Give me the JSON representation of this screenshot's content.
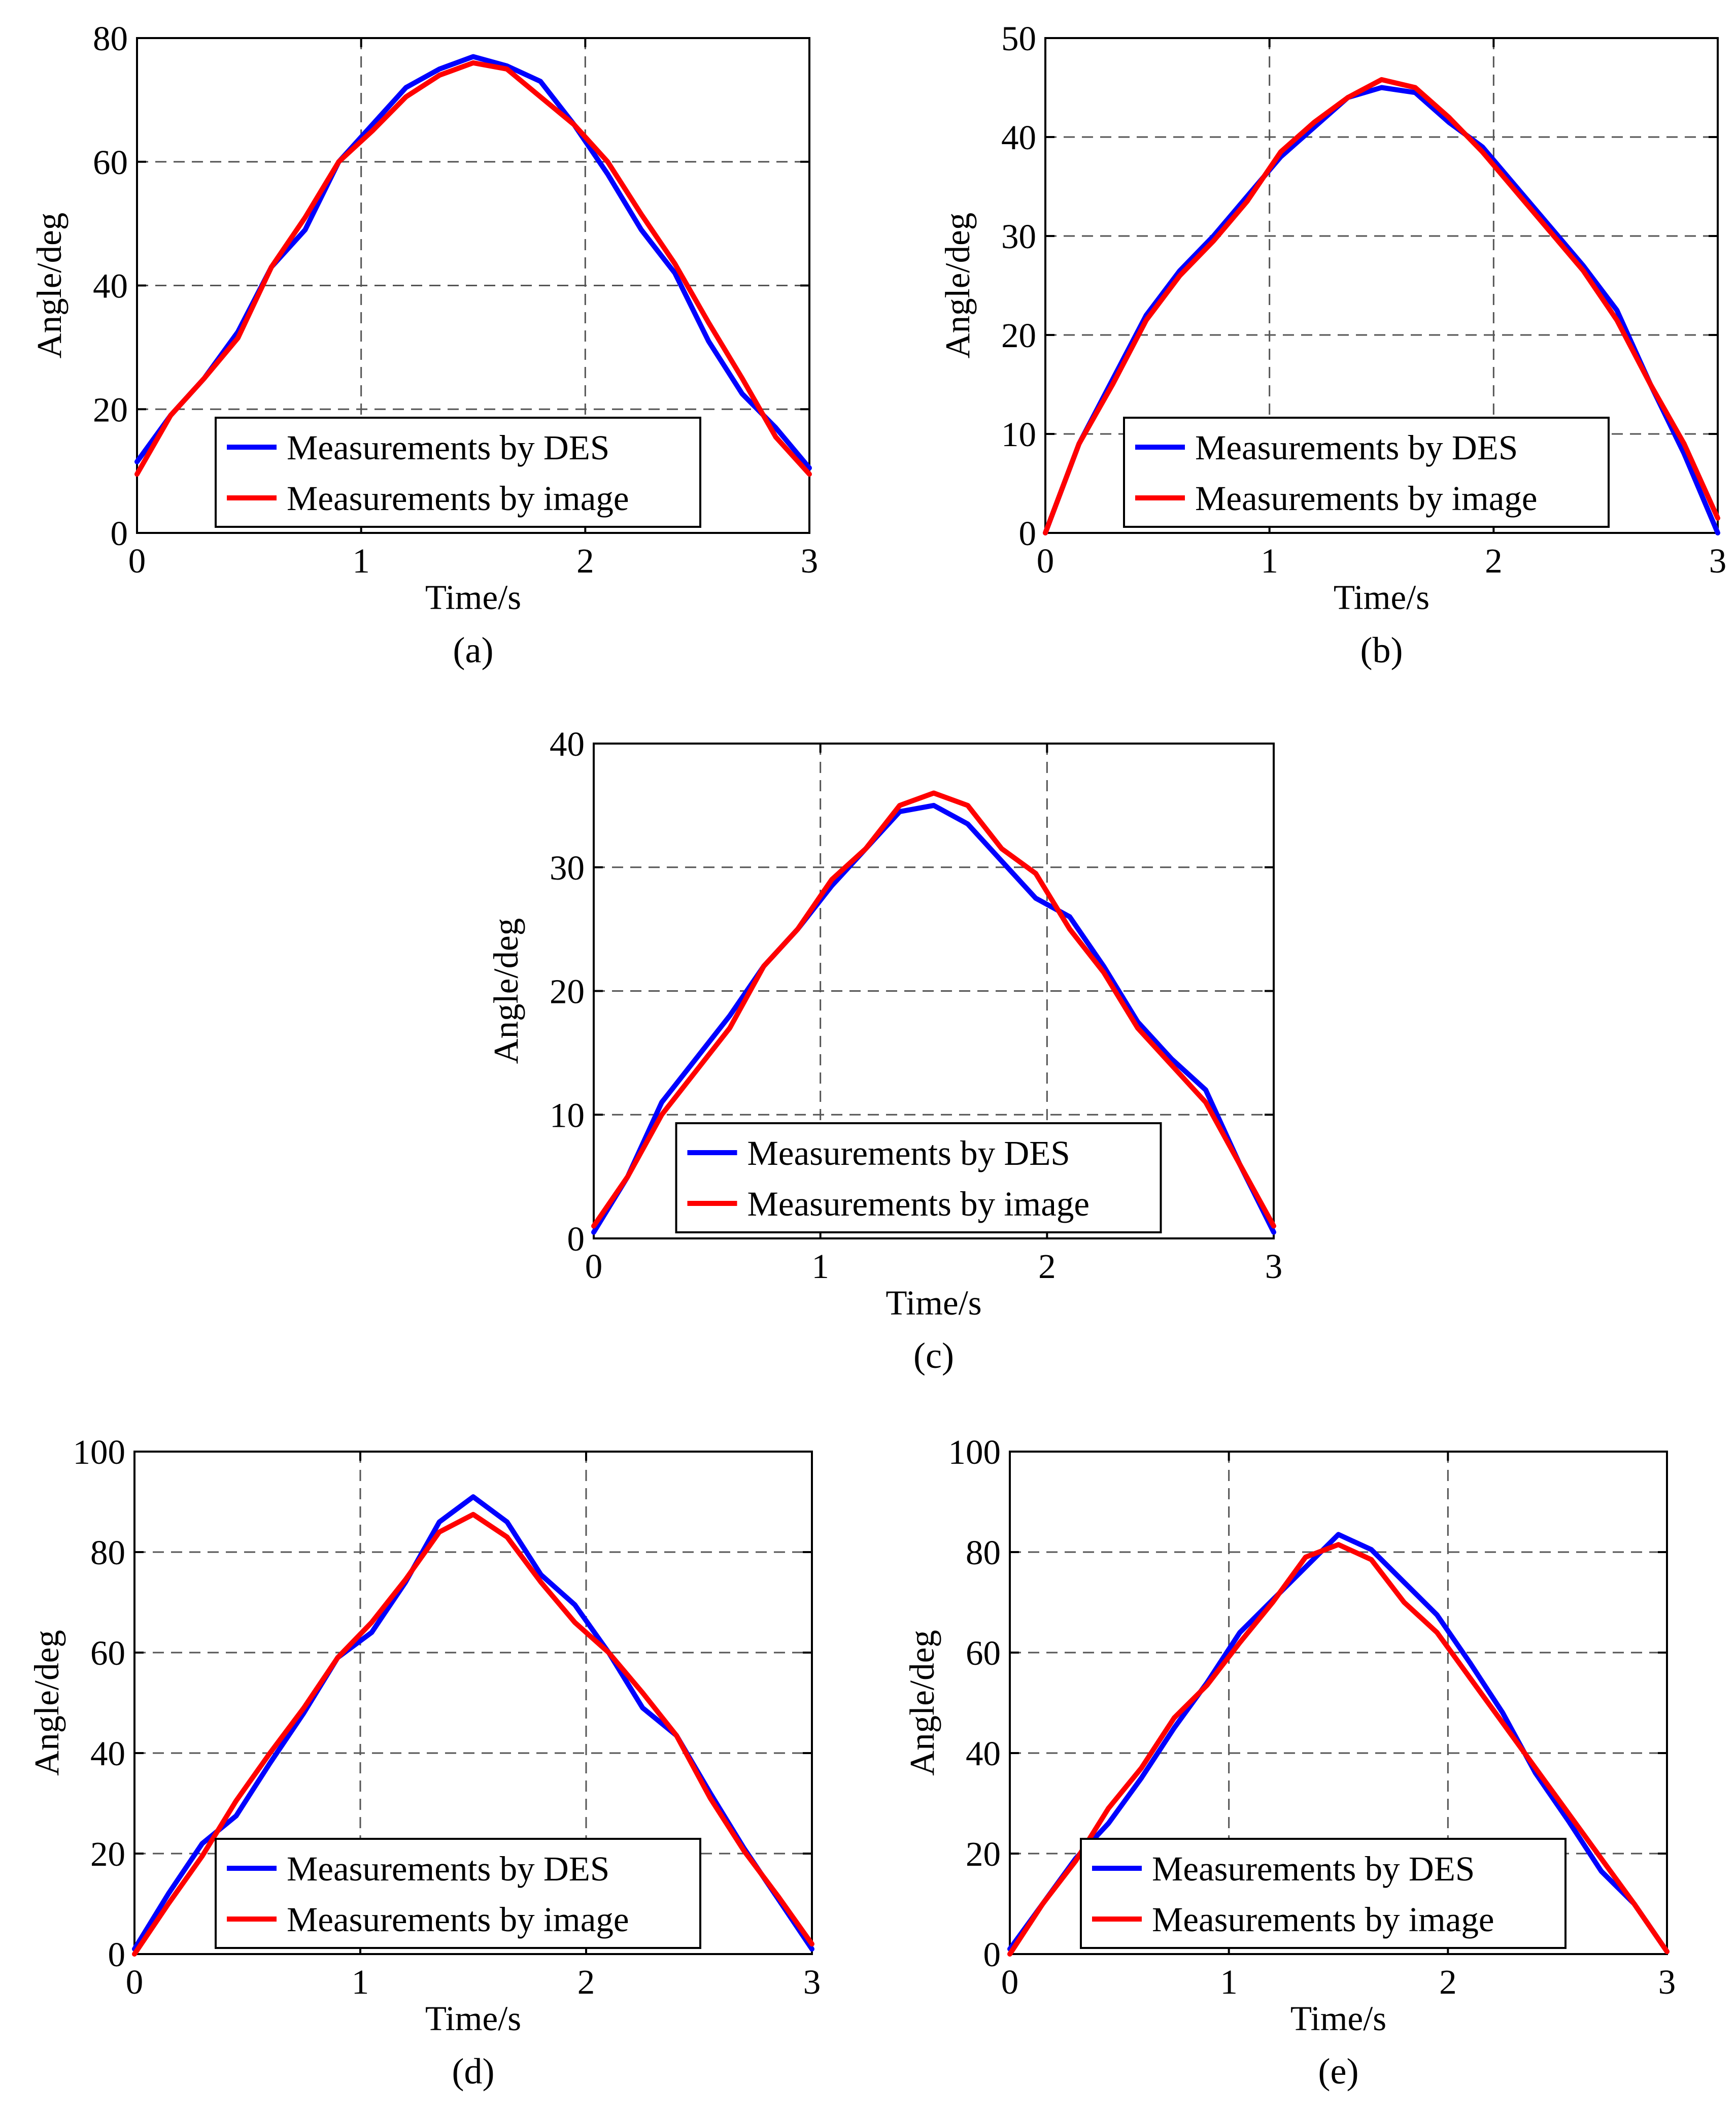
{
  "colors": {
    "des": "#0000ff",
    "image": "#ff0000"
  },
  "chart_data": [
    {
      "id": "a",
      "type": "line",
      "caption": "(a)",
      "xlabel": "Time/s",
      "ylabel": "Angle/deg",
      "xlim": [
        0,
        3
      ],
      "ylim": [
        0,
        80
      ],
      "xticks": [
        0,
        1,
        2,
        3
      ],
      "yticks": [
        0,
        20,
        40,
        60,
        80
      ],
      "grid": true,
      "legend_position": "bottom-center",
      "series": [
        {
          "name": "Measurements by DES",
          "color": "#0000ff",
          "x": [
            0,
            0.15,
            0.3,
            0.45,
            0.6,
            0.75,
            0.9,
            1.05,
            1.2,
            1.35,
            1.5,
            1.65,
            1.8,
            1.95,
            2.1,
            2.25,
            2.4,
            2.55,
            2.7,
            2.85,
            3
          ],
          "y": [
            11.5,
            19,
            25,
            32.5,
            43,
            49,
            60,
            66,
            72,
            75,
            77,
            75.5,
            73,
            66,
            58,
            49,
            42,
            31,
            22.5,
            17,
            10.5
          ]
        },
        {
          "name": "Measurements by image",
          "color": "#ff0000",
          "x": [
            0,
            0.15,
            0.3,
            0.45,
            0.6,
            0.75,
            0.9,
            1.05,
            1.2,
            1.35,
            1.5,
            1.65,
            1.8,
            1.95,
            2.1,
            2.25,
            2.4,
            2.55,
            2.7,
            2.85,
            3
          ],
          "y": [
            9.5,
            19,
            25,
            31.5,
            43,
            51,
            60,
            65,
            70.5,
            74,
            76,
            75,
            70.5,
            66,
            60,
            51.5,
            43.5,
            34,
            25,
            15.5,
            9.5
          ]
        }
      ]
    },
    {
      "id": "b",
      "type": "line",
      "caption": "(b)",
      "xlabel": "Time/s",
      "ylabel": "Angle/deg",
      "xlim": [
        0,
        3
      ],
      "ylim": [
        0,
        50
      ],
      "xticks": [
        0,
        1,
        2,
        3
      ],
      "yticks": [
        0,
        10,
        20,
        30,
        40,
        50
      ],
      "grid": true,
      "legend_position": "bottom-center",
      "series": [
        {
          "name": "Measurements by DES",
          "color": "#0000ff",
          "x": [
            0,
            0.15,
            0.3,
            0.45,
            0.6,
            0.75,
            0.9,
            1.05,
            1.2,
            1.35,
            1.5,
            1.65,
            1.8,
            1.95,
            2.1,
            2.25,
            2.4,
            2.55,
            2.7,
            2.85,
            3
          ],
          "y": [
            0,
            9,
            15.5,
            22,
            26.5,
            30,
            34,
            38,
            41,
            44,
            45,
            44.5,
            41.5,
            39,
            35,
            31,
            27,
            22.5,
            15,
            8,
            0
          ]
        },
        {
          "name": "Measurements by image",
          "color": "#ff0000",
          "x": [
            0,
            0.15,
            0.3,
            0.45,
            0.6,
            0.75,
            0.9,
            1.05,
            1.2,
            1.35,
            1.5,
            1.65,
            1.8,
            1.95,
            2.1,
            2.25,
            2.4,
            2.55,
            2.7,
            2.85,
            3
          ],
          "y": [
            0,
            9,
            15,
            21.5,
            26,
            29.5,
            33.5,
            38.5,
            41.5,
            44,
            45.8,
            45,
            42,
            38.5,
            34.5,
            30.5,
            26.5,
            21.5,
            15,
            9,
            1.5
          ]
        }
      ]
    },
    {
      "id": "c",
      "type": "line",
      "caption": "(c)",
      "xlabel": "Time/s",
      "ylabel": "Angle/deg",
      "xlim": [
        0,
        3
      ],
      "ylim": [
        0,
        40
      ],
      "xticks": [
        0,
        1,
        2,
        3
      ],
      "yticks": [
        0,
        10,
        20,
        30,
        40
      ],
      "grid": true,
      "legend_position": "bottom-center",
      "series": [
        {
          "name": "Measurements by DES",
          "color": "#0000ff",
          "x": [
            0,
            0.15,
            0.3,
            0.45,
            0.6,
            0.75,
            0.9,
            1.05,
            1.2,
            1.35,
            1.5,
            1.65,
            1.8,
            1.95,
            2.1,
            2.25,
            2.4,
            2.55,
            2.7,
            2.85,
            3
          ],
          "y": [
            0.5,
            5,
            11,
            14.5,
            18,
            22,
            25,
            28.5,
            31.5,
            34.5,
            35,
            33.5,
            30.5,
            27.5,
            26,
            22,
            17.5,
            14.5,
            12,
            6,
            0.5
          ]
        },
        {
          "name": "Measurements by image",
          "color": "#ff0000",
          "x": [
            0,
            0.15,
            0.3,
            0.45,
            0.6,
            0.75,
            0.9,
            1.05,
            1.2,
            1.35,
            1.5,
            1.65,
            1.8,
            1.95,
            2.1,
            2.25,
            2.4,
            2.55,
            2.7,
            2.85,
            3
          ],
          "y": [
            1,
            5,
            10,
            13.5,
            17,
            22,
            25,
            29,
            31.5,
            35,
            36,
            35,
            31.5,
            29.5,
            25,
            21.5,
            17,
            14,
            11,
            6,
            1
          ]
        }
      ]
    },
    {
      "id": "d",
      "type": "line",
      "caption": "(d)",
      "xlabel": "Time/s",
      "ylabel": "Angle/deg",
      "xlim": [
        0,
        3
      ],
      "ylim": [
        0,
        100
      ],
      "xticks": [
        0,
        1,
        2,
        3
      ],
      "yticks": [
        0,
        20,
        40,
        60,
        80,
        100
      ],
      "grid": true,
      "legend_position": "bottom-center",
      "series": [
        {
          "name": "Measurements by DES",
          "color": "#0000ff",
          "x": [
            0,
            0.15,
            0.3,
            0.45,
            0.6,
            0.75,
            0.9,
            1.05,
            1.2,
            1.35,
            1.5,
            1.65,
            1.8,
            1.95,
            2.1,
            2.25,
            2.4,
            2.55,
            2.7,
            2.85,
            3
          ],
          "y": [
            1,
            12,
            22,
            27.5,
            38,
            48,
            59,
            64,
            74,
            86,
            91,
            86,
            75.5,
            69.5,
            60,
            49,
            43.5,
            32,
            21,
            11,
            1
          ]
        },
        {
          "name": "Measurements by image",
          "color": "#ff0000",
          "x": [
            0,
            0.15,
            0.3,
            0.45,
            0.6,
            0.75,
            0.9,
            1.05,
            1.2,
            1.35,
            1.5,
            1.65,
            1.8,
            1.95,
            2.1,
            2.25,
            2.4,
            2.55,
            2.7,
            2.85,
            3
          ],
          "y": [
            0,
            10,
            19.5,
            30.5,
            40,
            49,
            59,
            66,
            74.5,
            84,
            87.5,
            83,
            74,
            66,
            60,
            52,
            43.5,
            31,
            20.5,
            11.5,
            2
          ]
        }
      ]
    },
    {
      "id": "e",
      "type": "line",
      "caption": "(e)",
      "xlabel": "Time/s",
      "ylabel": "Angle/deg",
      "xlim": [
        0,
        3
      ],
      "ylim": [
        0,
        100
      ],
      "xticks": [
        0,
        1,
        2,
        3
      ],
      "yticks": [
        0,
        20,
        40,
        60,
        80,
        100
      ],
      "grid": true,
      "legend_position": "bottom-center",
      "series": [
        {
          "name": "Measurements by DES",
          "color": "#0000ff",
          "x": [
            0,
            0.15,
            0.3,
            0.45,
            0.6,
            0.75,
            0.9,
            1.05,
            1.2,
            1.35,
            1.5,
            1.65,
            1.8,
            1.95,
            2.1,
            2.25,
            2.4,
            2.55,
            2.7,
            2.85,
            3
          ],
          "y": [
            1,
            10,
            19,
            26,
            35,
            45,
            54,
            64,
            70.5,
            77,
            83.5,
            80.5,
            74,
            67.5,
            58,
            48,
            36,
            26.5,
            16.5,
            10,
            0.5
          ]
        },
        {
          "name": "Measurements by image",
          "color": "#ff0000",
          "x": [
            0,
            0.15,
            0.3,
            0.45,
            0.6,
            0.75,
            0.9,
            1.05,
            1.2,
            1.35,
            1.5,
            1.65,
            1.8,
            1.95,
            2.1,
            2.25,
            2.4,
            2.55,
            2.7,
            2.85,
            3
          ],
          "y": [
            0,
            10,
            18.5,
            29,
            37,
            47,
            53.5,
            62,
            70,
            79,
            81.5,
            78.5,
            70,
            64,
            55,
            46,
            37,
            28,
            19,
            10,
            0.5
          ]
        }
      ]
    }
  ]
}
